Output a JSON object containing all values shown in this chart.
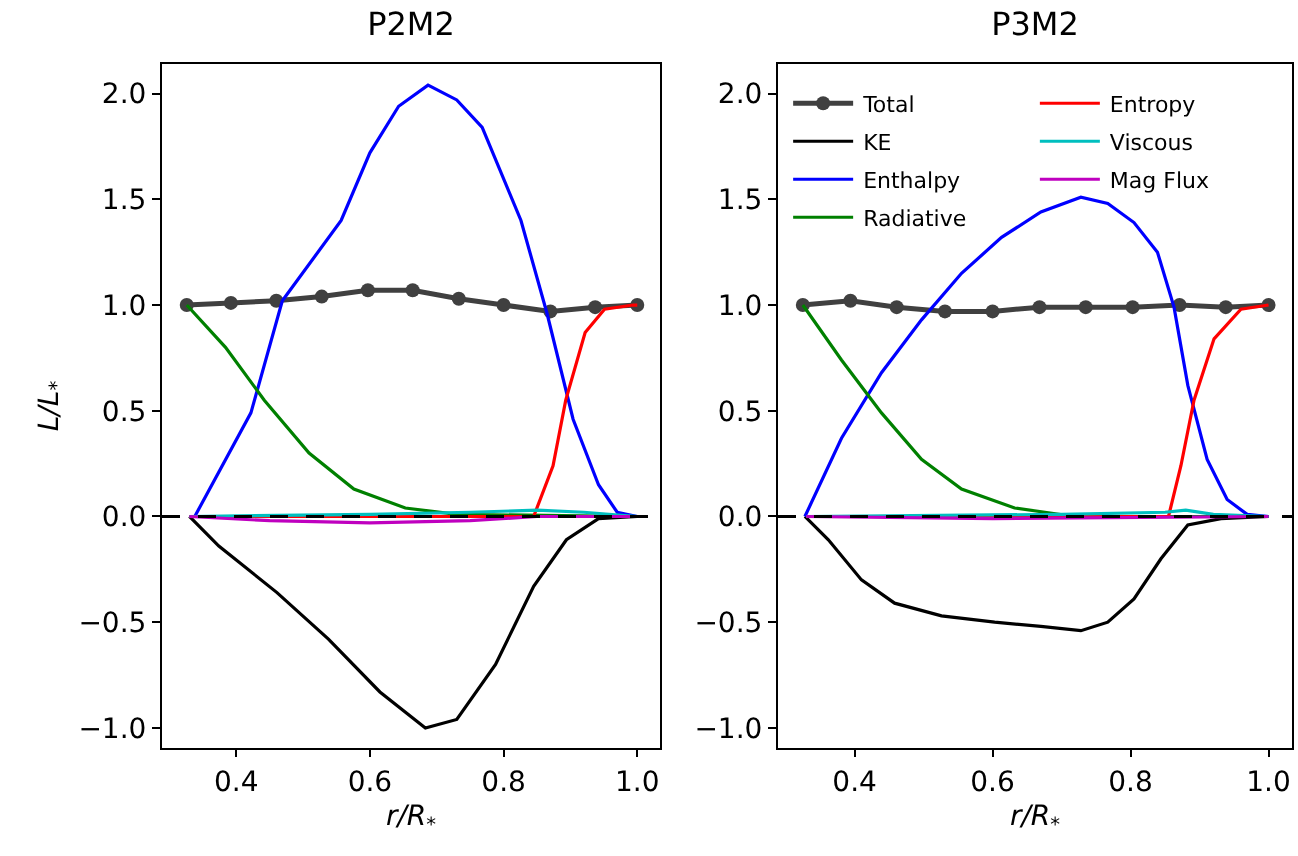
{
  "chart_data": [
    {
      "type": "line",
      "title": "P2M2",
      "xlabel": "r/R$_{*}$",
      "ylabel": "L/L$_{*}$",
      "xlim": [
        0.289,
        1.034
      ],
      "ylim": [
        -1.095,
        2.14
      ],
      "xticks": [
        {
          "value": 0.4,
          "label": "0.4"
        },
        {
          "value": 0.6,
          "label": "0.6"
        },
        {
          "value": 0.8,
          "label": "0.8"
        },
        {
          "value": 1,
          "label": "1.0"
        }
      ],
      "yticks": [
        {
          "value": -1,
          "label": "−1.0"
        },
        {
          "value": -0.5,
          "label": "−0.5"
        },
        {
          "value": 0,
          "label": "0.0"
        },
        {
          "value": 0.5,
          "label": "0.5"
        },
        {
          "value": 1,
          "label": "1.0"
        },
        {
          "value": 1.5,
          "label": "1.5"
        },
        {
          "value": 2,
          "label": "2.0"
        }
      ],
      "grid": false,
      "legend": false,
      "ref_lines": [
        {
          "axis": "y",
          "value": 0,
          "color": "#000000",
          "line_style": "dashed"
        }
      ],
      "series": [
        {
          "color": "#404040",
          "marker": "circle",
          "x": [
            0.326,
            0.392,
            0.46,
            0.528,
            0.597,
            0.664,
            0.733,
            0.8,
            0.87,
            0.937,
            1.0
          ],
          "values": [
            1.0,
            1.01,
            1.02,
            1.04,
            1.07,
            1.07,
            1.03,
            1.0,
            0.97,
            0.99,
            1.0
          ]
        },
        {
          "color": "#000000",
          "x": [
            0.33,
            0.374,
            0.461,
            0.538,
            0.615,
            0.683,
            0.73,
            0.788,
            0.845,
            0.894,
            0.942,
            1.0
          ],
          "values": [
            0,
            -0.14,
            -0.36,
            -0.58,
            -0.83,
            -1.0,
            -0.96,
            -0.7,
            -0.33,
            -0.11,
            -0.01,
            0
          ]
        },
        {
          "color": "#0000ff",
          "x": [
            0.338,
            0.422,
            0.469,
            0.557,
            0.6,
            0.643,
            0.687,
            0.73,
            0.768,
            0.826,
            0.865,
            0.904,
            0.942,
            0.97,
            1.0
          ],
          "values": [
            0,
            0.49,
            1.02,
            1.4,
            1.72,
            1.94,
            2.04,
            1.97,
            1.84,
            1.4,
            0.96,
            0.46,
            0.15,
            0.02,
            0
          ]
        },
        {
          "color": "#008000",
          "x": [
            0.326,
            0.384,
            0.442,
            0.509,
            0.576,
            0.653,
            0.73,
            1.0
          ],
          "values": [
            1.0,
            0.8,
            0.55,
            0.3,
            0.13,
            0.04,
            0.01,
            0
          ]
        },
        {
          "color": "#ff0000",
          "x": [
            0.33,
            0.845,
            0.874,
            0.893,
            0.922,
            0.951,
            0.994,
            1.0
          ],
          "values": [
            0,
            0,
            0.24,
            0.55,
            0.87,
            0.98,
            1.0,
            1.0
          ]
        },
        {
          "color": "#00bfbf",
          "x": [
            0.33,
            0.6,
            0.75,
            0.85,
            0.92,
            1.0
          ],
          "values": [
            0,
            0.01,
            0.02,
            0.03,
            0.02,
            0
          ]
        },
        {
          "color": "#bf00bf",
          "x": [
            0.33,
            0.45,
            0.6,
            0.75,
            0.85,
            1.0
          ],
          "values": [
            0,
            -0.02,
            -0.03,
            -0.02,
            0,
            0
          ]
        }
      ]
    },
    {
      "type": "line",
      "title": "P3M2",
      "xlabel": "r/R$_{*}$",
      "xlim": [
        0.289,
        1.034
      ],
      "ylim": [
        -1.095,
        2.14
      ],
      "xticks": [
        {
          "value": 0.4,
          "label": "0.4"
        },
        {
          "value": 0.6,
          "label": "0.6"
        },
        {
          "value": 0.8,
          "label": "0.8"
        },
        {
          "value": 1,
          "label": "1.0"
        }
      ],
      "yticks": [
        {
          "value": -1,
          "label": "−1.0"
        },
        {
          "value": -0.5,
          "label": "−0.5"
        },
        {
          "value": 0,
          "label": "0.0"
        },
        {
          "value": 0.5,
          "label": "0.5"
        },
        {
          "value": 1,
          "label": "1.0"
        },
        {
          "value": 1.5,
          "label": "1.5"
        },
        {
          "value": 2,
          "label": "2.0"
        }
      ],
      "grid": false,
      "legend": "top left",
      "ref_lines": [
        {
          "axis": "y",
          "value": 0,
          "color": "#000000",
          "line_style": "dashed"
        }
      ],
      "series": [
        {
          "name": "Total",
          "color": "#404040",
          "marker": "circle",
          "x": [
            0.325,
            0.394,
            0.461,
            0.531,
            0.6,
            0.668,
            0.735,
            0.803,
            0.871,
            0.938,
            1.0
          ],
          "values": [
            1.0,
            1.02,
            0.99,
            0.97,
            0.97,
            0.99,
            0.99,
            0.99,
            1.0,
            0.99,
            1.0
          ]
        },
        {
          "name": "KE",
          "color": "#000000",
          "x": [
            0.328,
            0.362,
            0.41,
            0.458,
            0.526,
            0.603,
            0.67,
            0.728,
            0.767,
            0.805,
            0.844,
            0.883,
            0.931,
            1.0
          ],
          "values": [
            0,
            -0.11,
            -0.3,
            -0.41,
            -0.47,
            -0.5,
            -0.52,
            -0.54,
            -0.5,
            -0.39,
            -0.2,
            -0.04,
            -0.01,
            0
          ]
        },
        {
          "name": "Enthalpy",
          "color": "#0000ff",
          "x": [
            0.328,
            0.381,
            0.439,
            0.497,
            0.555,
            0.613,
            0.67,
            0.728,
            0.767,
            0.805,
            0.839,
            0.863,
            0.883,
            0.911,
            0.94,
            0.969,
            1.0
          ],
          "values": [
            0,
            0.37,
            0.68,
            0.93,
            1.15,
            1.32,
            1.44,
            1.51,
            1.48,
            1.39,
            1.25,
            0.99,
            0.62,
            0.27,
            0.08,
            0.01,
            0
          ]
        },
        {
          "name": "Radiative",
          "color": "#008000",
          "x": [
            0.325,
            0.381,
            0.439,
            0.497,
            0.555,
            0.632,
            0.719,
            1.0
          ],
          "values": [
            1.0,
            0.74,
            0.49,
            0.27,
            0.13,
            0.04,
            0,
            0
          ]
        },
        {
          "name": "Entropy",
          "color": "#ff0000",
          "x": [
            0.33,
            0.855,
            0.873,
            0.892,
            0.921,
            0.96,
            1.0
          ],
          "values": [
            0,
            0,
            0.24,
            0.55,
            0.84,
            0.98,
            1.0
          ]
        },
        {
          "name": "Viscous",
          "color": "#00bfbf",
          "x": [
            0.33,
            0.7,
            0.85,
            0.88,
            0.92,
            1.0
          ],
          "values": [
            0,
            0.01,
            0.02,
            0.03,
            0.01,
            0
          ]
        },
        {
          "name": "Mag Flux",
          "color": "#bf00bf",
          "x": [
            0.33,
            0.6,
            1.0
          ],
          "values": [
            0,
            -0.01,
            0
          ]
        }
      ]
    }
  ]
}
